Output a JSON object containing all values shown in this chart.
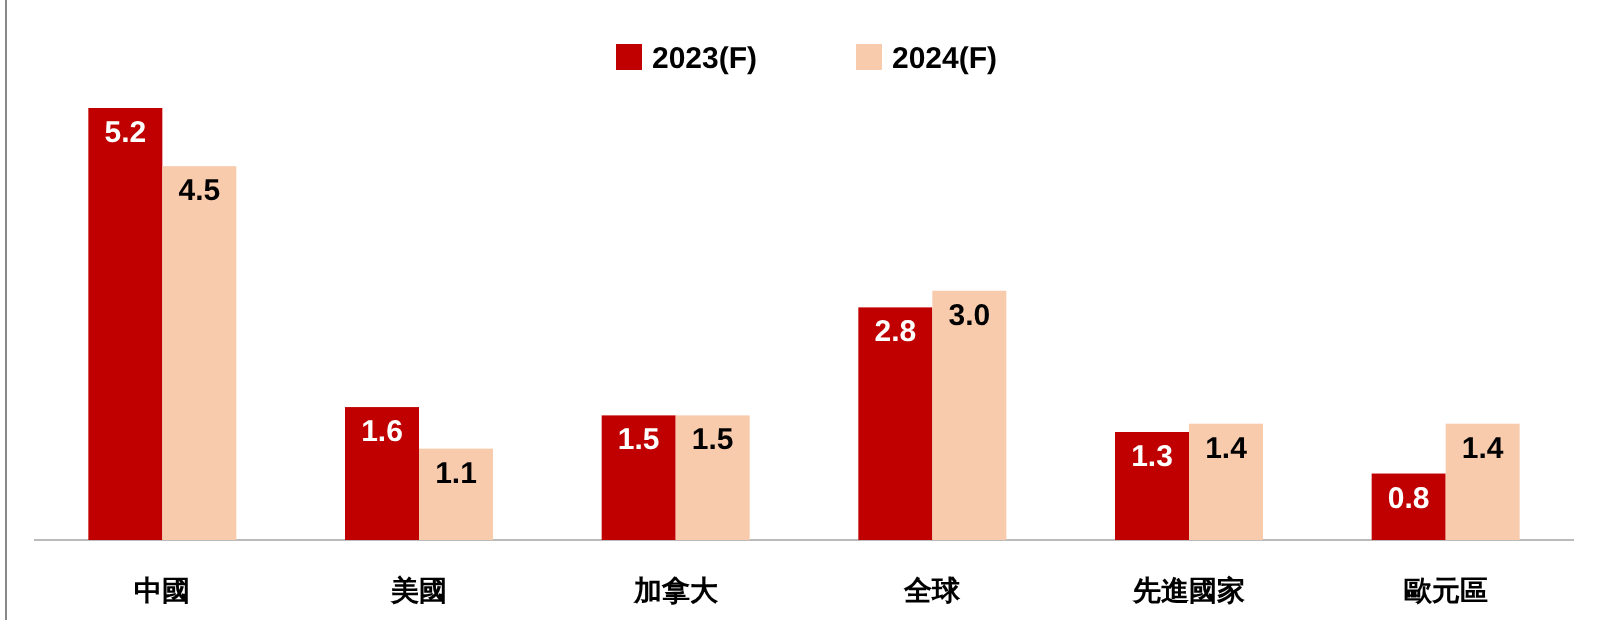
{
  "chart_data": {
    "type": "bar",
    "categories": [
      "中國",
      "美國",
      "加拿大",
      "全球",
      "先進國家",
      "歐元區"
    ],
    "series": [
      {
        "name": "2023(F)",
        "color": "#c00000",
        "values": [
          5.2,
          1.6,
          1.5,
          2.8,
          1.3,
          0.8
        ]
      },
      {
        "name": "2024(F)",
        "color": "#f8cbad",
        "values": [
          4.5,
          1.1,
          1.5,
          3.0,
          1.4,
          1.4
        ],
        "value_labels": [
          "4.5",
          "1.1",
          "1.5",
          "3.0",
          "1.4",
          "1.4"
        ]
      }
    ],
    "data_labels": true,
    "legend": "top"
  }
}
